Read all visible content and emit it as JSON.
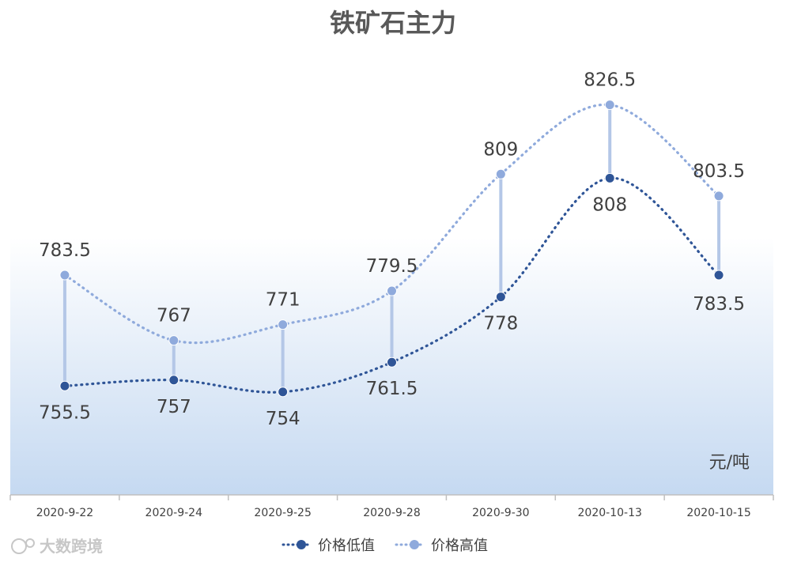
{
  "chart_data": {
    "type": "line",
    "title": "铁矿石主力",
    "unit_label": "元/吨",
    "categories": [
      "2020-9-22",
      "2020-9-24",
      "2020-9-25",
      "2020-9-28",
      "2020-9-30",
      "2020-10-13",
      "2020-10-15"
    ],
    "series": [
      {
        "name": "价格低值",
        "values": [
          755.5,
          757,
          754,
          761.5,
          778,
          808,
          783.5
        ],
        "labels": [
          "755.5",
          "757",
          "754",
          "761.5",
          "778",
          "808",
          "783.5"
        ],
        "color": "#2f5597"
      },
      {
        "name": "价格高值",
        "values": [
          783.5,
          767,
          771,
          779.5,
          809,
          826.5,
          803.5
        ],
        "labels": [
          "783.5",
          "767",
          "771",
          "779.5",
          "809",
          "826.5",
          "803.5"
        ],
        "color": "#8faadc"
      }
    ],
    "high_low_lines": true,
    "legend_position": "bottom",
    "grid": false,
    "ylim": [
      728,
      845
    ]
  },
  "colors": {
    "title": "#595959",
    "labels": "#404040",
    "axis": "#bfbfbf",
    "drop_line": "#b4c7e7",
    "background_gradient_top": "#ffffff",
    "background_gradient_bottom": "#c5d9f1"
  },
  "watermark": {
    "text": "大数跨境"
  }
}
